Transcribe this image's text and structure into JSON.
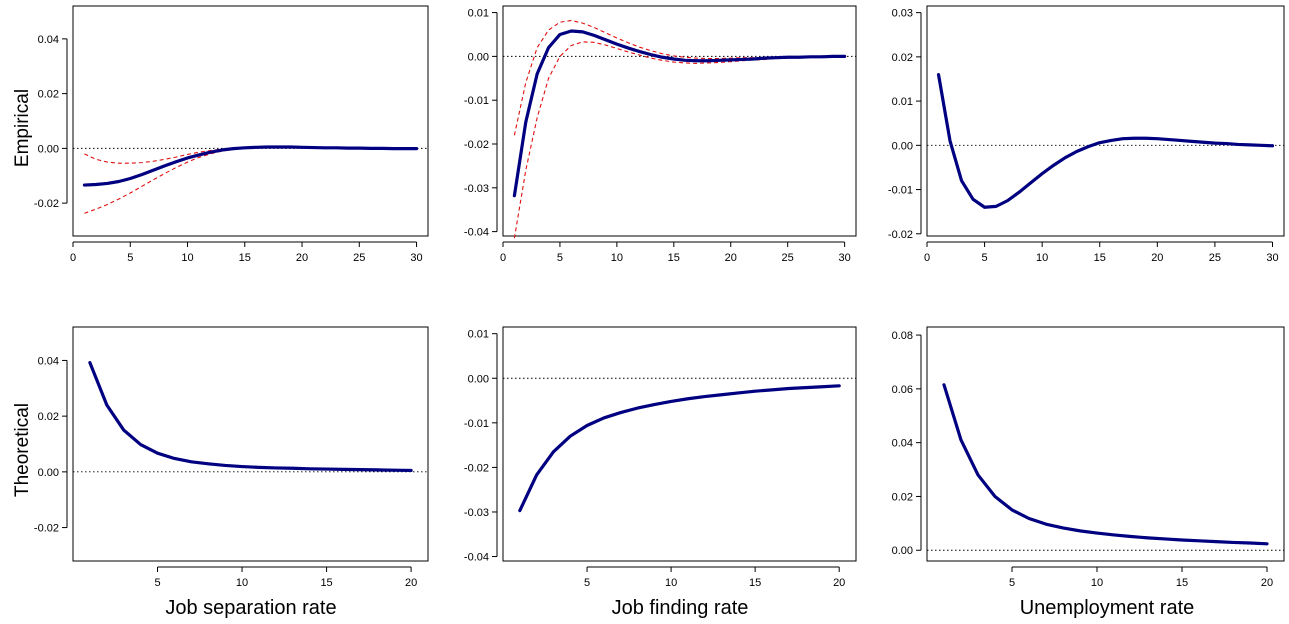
{
  "row_labels": [
    "Empirical",
    "Theoretical"
  ],
  "column_labels": [
    "Job separation rate",
    "Job finding rate",
    "Unemployment rate"
  ],
  "colors": {
    "main": "#000080",
    "band": "#e01010",
    "zero": "#000000"
  },
  "chart_data": [
    {
      "type": "line",
      "row": "Empirical",
      "column": "Job separation rate",
      "xlim": [
        0,
        31
      ],
      "ylim": [
        -0.032,
        0.052
      ],
      "xticks": [
        0,
        5,
        10,
        15,
        20,
        25,
        30
      ],
      "yticks": [
        -0.02,
        0.0,
        0.02,
        0.04
      ],
      "ytick_labels": [
        "-0.02",
        "0.00",
        "0.02",
        "0.04"
      ],
      "zero_line": true,
      "x": [
        1,
        2,
        3,
        4,
        5,
        6,
        7,
        8,
        9,
        10,
        11,
        12,
        13,
        14,
        15,
        16,
        17,
        18,
        19,
        20,
        21,
        22,
        23,
        24,
        25,
        26,
        27,
        28,
        29,
        30
      ],
      "series": [
        {
          "role": "estimate",
          "values": [
            -0.0134,
            -0.0132,
            -0.0128,
            -0.0121,
            -0.011,
            -0.0096,
            -0.008,
            -0.0064,
            -0.0049,
            -0.0035,
            -0.0024,
            -0.0014,
            -0.0006,
            -0.0001,
            0.0002,
            0.0004,
            0.0005,
            0.0005,
            0.0005,
            0.0004,
            0.0003,
            0.0002,
            0.0002,
            0.0001,
            0.0001,
            0.0,
            0.0,
            -0.0001,
            -0.0001,
            -0.0001
          ]
        },
        {
          "role": "lower",
          "values": [
            -0.0237,
            -0.0222,
            -0.0205,
            -0.0185,
            -0.0163,
            -0.0139,
            -0.0115,
            -0.0092,
            -0.007,
            -0.005,
            -0.0033,
            -0.002,
            -0.001,
            -0.0004,
            0.0,
            0.0002,
            0.0003,
            0.0003,
            0.0003,
            0.0002,
            0.0001,
            0.0001,
            0.0,
            -0.0001,
            -0.0001,
            -0.0001,
            -0.0002,
            -0.0002,
            -0.0002,
            -0.0002
          ]
        },
        {
          "role": "upper",
          "values": [
            -0.002,
            -0.004,
            -0.005,
            -0.0054,
            -0.0054,
            -0.0052,
            -0.0047,
            -0.004,
            -0.0032,
            -0.0022,
            -0.0014,
            -0.0008,
            -0.0003,
            0.0001,
            0.0004,
            0.0006,
            0.0007,
            0.0007,
            0.0007,
            0.0006,
            0.0005,
            0.0004,
            0.0003,
            0.0002,
            0.0002,
            0.0001,
            0.0001,
            0.0,
            0.0,
            0.0
          ]
        }
      ]
    },
    {
      "type": "line",
      "row": "Empirical",
      "column": "Job finding rate",
      "xlim": [
        0,
        31
      ],
      "ylim": [
        -0.041,
        0.0115
      ],
      "xticks": [
        0,
        5,
        10,
        15,
        20,
        25,
        30
      ],
      "yticks": [
        -0.04,
        -0.03,
        -0.02,
        -0.01,
        0.0,
        0.01
      ],
      "ytick_labels": [
        "-0.04",
        "-0.03",
        "-0.02",
        "-0.01",
        "0.00",
        "0.01"
      ],
      "zero_line": true,
      "x": [
        1,
        2,
        3,
        4,
        5,
        6,
        7,
        8,
        9,
        10,
        11,
        12,
        13,
        14,
        15,
        16,
        17,
        18,
        19,
        20,
        21,
        22,
        23,
        24,
        25,
        26,
        27,
        28,
        29,
        30
      ],
      "series": [
        {
          "role": "estimate",
          "values": [
            -0.0318,
            -0.015,
            -0.004,
            0.002,
            0.005,
            0.0058,
            0.0056,
            0.0048,
            0.0038,
            0.0028,
            0.0019,
            0.0011,
            0.0004,
            -0.0002,
            -0.0006,
            -0.0009,
            -0.001,
            -0.001,
            -0.0009,
            -0.0008,
            -0.0007,
            -0.0006,
            -0.0004,
            -0.0003,
            -0.0002,
            -0.0002,
            -0.0001,
            -0.0001,
            0.0,
            0.0
          ]
        },
        {
          "role": "lower",
          "values": [
            -0.0415,
            -0.026,
            -0.014,
            -0.005,
            0.0,
            0.0025,
            0.0033,
            0.0032,
            0.0026,
            0.0018,
            0.001,
            0.0003,
            -0.0004,
            -0.0009,
            -0.0013,
            -0.0015,
            -0.0016,
            -0.0015,
            -0.0014,
            -0.0012,
            -0.001,
            -0.0008,
            -0.0007,
            -0.0005,
            -0.0004,
            -0.0003,
            -0.0002,
            -0.0001,
            -0.0001,
            0.0
          ]
        },
        {
          "role": "upper",
          "values": [
            -0.018,
            -0.006,
            0.002,
            0.006,
            0.0078,
            0.0082,
            0.0076,
            0.0066,
            0.0054,
            0.0042,
            0.0031,
            0.0021,
            0.0013,
            0.0006,
            0.0001,
            -0.0002,
            -0.0004,
            -0.0005,
            -0.0005,
            -0.0004,
            -0.0003,
            -0.0003,
            -0.0002,
            -0.0001,
            -0.0001,
            0.0,
            0.0,
            0.0001,
            0.0001,
            0.0001
          ]
        }
      ]
    },
    {
      "type": "line",
      "row": "Empirical",
      "column": "Unemployment rate",
      "xlim": [
        0,
        31
      ],
      "ylim": [
        -0.0205,
        0.0315
      ],
      "xticks": [
        0,
        5,
        10,
        15,
        20,
        25,
        30
      ],
      "yticks": [
        -0.02,
        -0.01,
        0.0,
        0.01,
        0.02,
        0.03
      ],
      "ytick_labels": [
        "-0.02",
        "-0.01",
        "0.00",
        "0.01",
        "0.02",
        "0.03"
      ],
      "zero_line": true,
      "x": [
        1,
        2,
        3,
        4,
        5,
        6,
        7,
        8,
        9,
        10,
        11,
        12,
        13,
        14,
        15,
        16,
        17,
        18,
        19,
        20,
        21,
        22,
        23,
        24,
        25,
        26,
        27,
        28,
        29,
        30
      ],
      "series": [
        {
          "role": "estimate",
          "values": [
            0.016,
            0.001,
            -0.008,
            -0.0122,
            -0.014,
            -0.0138,
            -0.0125,
            -0.0106,
            -0.0085,
            -0.0064,
            -0.0045,
            -0.0028,
            -0.0014,
            -0.0003,
            0.0006,
            0.0011,
            0.0015,
            0.0016,
            0.0016,
            0.0015,
            0.0013,
            0.0011,
            0.0009,
            0.0007,
            0.0005,
            0.0004,
            0.0002,
            0.0001,
            0.0,
            -0.0001
          ]
        }
      ]
    },
    {
      "type": "line",
      "row": "Theoretical",
      "column": "Job separation rate",
      "xlim": [
        0,
        21
      ],
      "ylim": [
        -0.032,
        0.052
      ],
      "xticks": [
        5,
        10,
        15,
        20
      ],
      "yticks": [
        -0.02,
        0.0,
        0.02,
        0.04
      ],
      "ytick_labels": [
        "-0.02",
        "0.00",
        "0.02",
        "0.04"
      ],
      "zero_line": true,
      "x": [
        1,
        2,
        3,
        4,
        5,
        6,
        7,
        8,
        9,
        10,
        11,
        12,
        13,
        14,
        15,
        16,
        17,
        18,
        19,
        20
      ],
      "series": [
        {
          "role": "estimate",
          "values": [
            0.0392,
            0.024,
            0.015,
            0.0098,
            0.0067,
            0.0048,
            0.0036,
            0.0029,
            0.0023,
            0.0019,
            0.0016,
            0.0014,
            0.0013,
            0.0011,
            0.001,
            0.0009,
            0.0008,
            0.0007,
            0.0006,
            0.0005
          ]
        }
      ]
    },
    {
      "type": "line",
      "row": "Theoretical",
      "column": "Job finding rate",
      "xlim": [
        0,
        21
      ],
      "ylim": [
        -0.041,
        0.0115
      ],
      "xticks": [
        5,
        10,
        15,
        20
      ],
      "yticks": [
        -0.04,
        -0.03,
        -0.02,
        -0.01,
        0.0,
        0.01
      ],
      "ytick_labels": [
        "-0.04",
        "-0.03",
        "-0.02",
        "-0.01",
        "0.00",
        "0.01"
      ],
      "zero_line": true,
      "x": [
        1,
        2,
        3,
        4,
        5,
        6,
        7,
        8,
        9,
        10,
        11,
        12,
        13,
        14,
        15,
        16,
        17,
        18,
        19,
        20
      ],
      "series": [
        {
          "role": "estimate",
          "values": [
            -0.0297,
            -0.0217,
            -0.0165,
            -0.013,
            -0.0106,
            -0.0089,
            -0.0077,
            -0.0067,
            -0.0059,
            -0.0052,
            -0.0046,
            -0.0041,
            -0.0037,
            -0.0033,
            -0.0029,
            -0.0026,
            -0.0023,
            -0.0021,
            -0.0019,
            -0.0017
          ]
        }
      ]
    },
    {
      "type": "line",
      "row": "Theoretical",
      "column": "Unemployment rate",
      "xlim": [
        0,
        21
      ],
      "ylim": [
        -0.004,
        0.083
      ],
      "xticks": [
        5,
        10,
        15,
        20
      ],
      "yticks": [
        0.0,
        0.02,
        0.04,
        0.06,
        0.08
      ],
      "ytick_labels": [
        "0.00",
        "0.02",
        "0.04",
        "0.06",
        "0.08"
      ],
      "zero_line": true,
      "x": [
        1,
        2,
        3,
        4,
        5,
        6,
        7,
        8,
        9,
        10,
        11,
        12,
        13,
        14,
        15,
        16,
        17,
        18,
        19,
        20
      ],
      "series": [
        {
          "role": "estimate",
          "values": [
            0.0615,
            0.041,
            0.028,
            0.02,
            0.015,
            0.0118,
            0.0097,
            0.0083,
            0.0072,
            0.0064,
            0.0057,
            0.0051,
            0.0046,
            0.0042,
            0.0038,
            0.0035,
            0.0032,
            0.0029,
            0.0027,
            0.0024
          ]
        }
      ]
    }
  ]
}
